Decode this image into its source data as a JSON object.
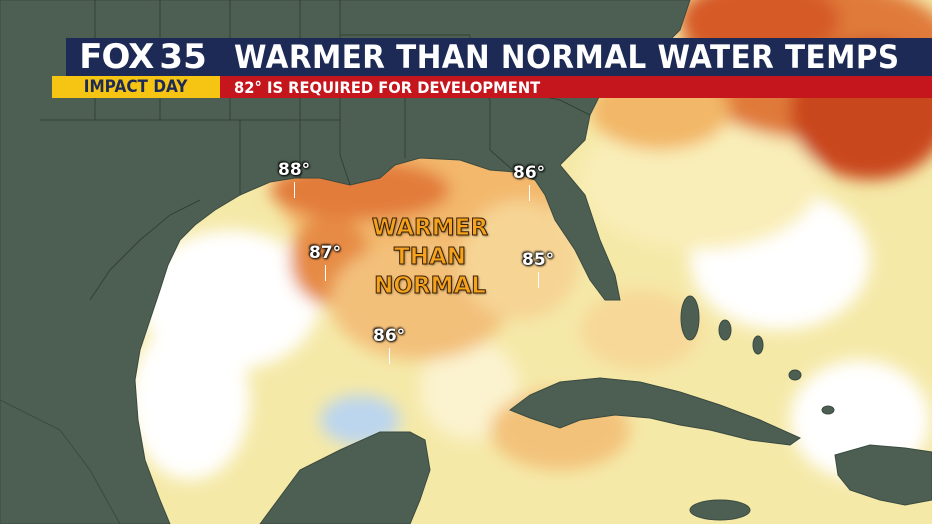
{
  "header": {
    "logo_fox": "FOX",
    "logo_number": "35",
    "badge": "IMPACT DAY",
    "title": "WARMER THAN NORMAL WATER TEMPS",
    "subtitle": "82° IS REQUIRED FOR DEVELOPMENT"
  },
  "annotation": {
    "line1": "WARMER",
    "line2": "THAN",
    "line3": "NORMAL"
  },
  "temps": [
    {
      "id": "nw-gulf",
      "label": "88°"
    },
    {
      "id": "ne-gulf",
      "label": "86°"
    },
    {
      "id": "w-central-gulf",
      "label": "87°"
    },
    {
      "id": "e-gulf",
      "label": "85°"
    },
    {
      "id": "s-central-gulf",
      "label": "86°"
    }
  ],
  "colors": {
    "land": "#4d5f52",
    "water_normal": "#ffffff",
    "water_warm": "#f5e7a0",
    "water_warmer": "#f4c272",
    "water_hot": "#e87a3a",
    "water_hottest": "#d1481e",
    "water_cool": "#cde2f2",
    "title_bar": "#1d2a55",
    "sub_bar": "#c4161c",
    "badge": "#f6c514",
    "annotation": "#f5a21e"
  }
}
